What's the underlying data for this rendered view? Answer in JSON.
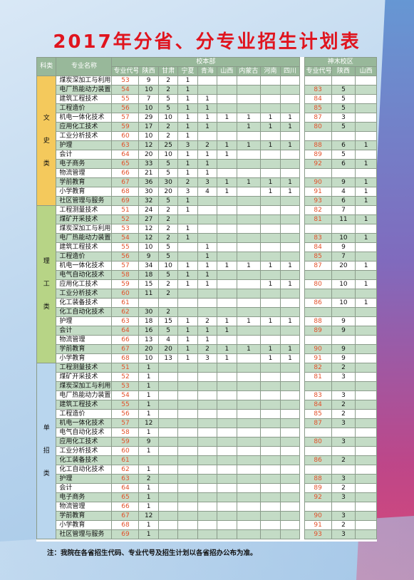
{
  "title": "2017年分省、分专业招生计划表",
  "colors": {
    "title": "#e0141e",
    "header": "#98b89a",
    "row_alt": "#c4dcc6",
    "code": "#e2502a",
    "cat_wen": "#f4c95c",
    "cat_li": "#b7d486",
    "cat_dan": "#b9d6ee"
  },
  "header": {
    "category": "科类",
    "major_name": "专业名称",
    "campus_main": "校本部",
    "campus_shenmu": "神木校区",
    "main_cols": [
      "专业代号",
      "陕西",
      "甘肃",
      "宁夏",
      "青海",
      "山西",
      "内蒙古",
      "河南",
      "四川"
    ],
    "shenmu_cols": [
      "专业代号",
      "陕西",
      "山西"
    ]
  },
  "groups": [
    {
      "category": "文\n\n史\n\n类",
      "cls": "cat-wen",
      "rows": [
        {
          "name": "煤炭深加工与利用",
          "code": "53",
          "m": [
            "9",
            "2",
            "1",
            "",
            "",
            "",
            "",
            ""
          ],
          "sc": "",
          "s": [
            "",
            ""
          ]
        },
        {
          "name": "电厂热能动力装置",
          "code": "54",
          "m": [
            "10",
            "2",
            "1",
            "",
            "",
            "",
            "",
            ""
          ],
          "sc": "83",
          "s": [
            "5",
            ""
          ]
        },
        {
          "name": "建筑工程技术",
          "code": "55",
          "m": [
            "7",
            "5",
            "1",
            "1",
            "",
            "",
            "",
            ""
          ],
          "sc": "84",
          "s": [
            "5",
            ""
          ]
        },
        {
          "name": "工程造价",
          "code": "56",
          "m": [
            "10",
            "5",
            "1",
            "1",
            "",
            "",
            "",
            ""
          ],
          "sc": "85",
          "s": [
            "5",
            ""
          ]
        },
        {
          "name": "机电一体化技术",
          "code": "57",
          "m": [
            "29",
            "10",
            "1",
            "1",
            "1",
            "1",
            "1",
            "1"
          ],
          "sc": "87",
          "s": [
            "3",
            ""
          ]
        },
        {
          "name": "应用化工技术",
          "code": "59",
          "m": [
            "17",
            "2",
            "1",
            "1",
            "",
            "1",
            "1",
            "1"
          ],
          "sc": "80",
          "s": [
            "5",
            ""
          ]
        },
        {
          "name": "工业分析技术",
          "code": "60",
          "m": [
            "10",
            "2",
            "1",
            "",
            "",
            "",
            "",
            ""
          ],
          "sc": "",
          "s": [
            "",
            ""
          ]
        },
        {
          "name": "护理",
          "code": "63",
          "m": [
            "12",
            "25",
            "3",
            "2",
            "1",
            "1",
            "1",
            "1"
          ],
          "sc": "88",
          "s": [
            "6",
            "1"
          ]
        },
        {
          "name": "会计",
          "code": "64",
          "m": [
            "20",
            "10",
            "1",
            "1",
            "1",
            "",
            "",
            ""
          ],
          "sc": "89",
          "s": [
            "5",
            ""
          ]
        },
        {
          "name": "电子商务",
          "code": "65",
          "m": [
            "33",
            "5",
            "1",
            "1",
            "",
            "",
            "",
            ""
          ],
          "sc": "92",
          "s": [
            "6",
            "1"
          ]
        },
        {
          "name": "物流管理",
          "code": "66",
          "m": [
            "21",
            "5",
            "1",
            "1",
            "",
            "",
            "",
            ""
          ],
          "sc": "",
          "s": [
            "",
            ""
          ]
        },
        {
          "name": "学前教育",
          "code": "67",
          "m": [
            "36",
            "30",
            "2",
            "3",
            "1",
            "1",
            "1",
            "1"
          ],
          "sc": "90",
          "s": [
            "9",
            "1"
          ]
        },
        {
          "name": "小学教育",
          "code": "68",
          "m": [
            "30",
            "20",
            "3",
            "4",
            "1",
            "",
            "1",
            "1"
          ],
          "sc": "91",
          "s": [
            "4",
            "1"
          ]
        },
        {
          "name": "社区管理与服务",
          "code": "69",
          "m": [
            "32",
            "5",
            "1",
            "",
            "",
            "",
            "",
            ""
          ],
          "sc": "93",
          "s": [
            "6",
            "1"
          ]
        }
      ]
    },
    {
      "category": "理\n\n工\n\n类",
      "cls": "cat-li",
      "rows": [
        {
          "name": "工程测量技术",
          "code": "51",
          "m": [
            "24",
            "2",
            "1",
            "",
            "",
            "",
            "",
            ""
          ],
          "sc": "82",
          "s": [
            "7",
            ""
          ]
        },
        {
          "name": "煤矿开采技术",
          "code": "52",
          "m": [
            "27",
            "2",
            "",
            "",
            "",
            "",
            "",
            ""
          ],
          "sc": "81",
          "s": [
            "11",
            "1"
          ]
        },
        {
          "name": "煤炭深加工与利用",
          "code": "53",
          "m": [
            "12",
            "2",
            "1",
            "",
            "",
            "",
            "",
            ""
          ],
          "sc": "",
          "s": [
            "",
            ""
          ]
        },
        {
          "name": "电厂热能动力装置",
          "code": "54",
          "m": [
            "12",
            "2",
            "1",
            "",
            "",
            "",
            "",
            ""
          ],
          "sc": "83",
          "s": [
            "10",
            "1"
          ]
        },
        {
          "name": "建筑工程技术",
          "code": "55",
          "m": [
            "10",
            "5",
            "",
            "1",
            "",
            "",
            "",
            ""
          ],
          "sc": "84",
          "s": [
            "9",
            ""
          ]
        },
        {
          "name": "工程造价",
          "code": "56",
          "m": [
            "9",
            "5",
            "",
            "1",
            "",
            "",
            "",
            ""
          ],
          "sc": "85",
          "s": [
            "7",
            ""
          ]
        },
        {
          "name": "机电一体化技术",
          "code": "57",
          "m": [
            "34",
            "10",
            "1",
            "1",
            "1",
            "1",
            "1",
            "1"
          ],
          "sc": "87",
          "s": [
            "20",
            "1"
          ]
        },
        {
          "name": "电气自动化技术",
          "code": "58",
          "m": [
            "18",
            "5",
            "1",
            "1",
            "",
            "",
            "",
            ""
          ],
          "sc": "",
          "s": [
            "",
            ""
          ]
        },
        {
          "name": "应用化工技术",
          "code": "59",
          "m": [
            "15",
            "2",
            "1",
            "1",
            "",
            "",
            "1",
            "1"
          ],
          "sc": "80",
          "s": [
            "10",
            "1"
          ]
        },
        {
          "name": "工业分析技术",
          "code": "60",
          "m": [
            "11",
            "2",
            "",
            "",
            "",
            "",
            "",
            ""
          ],
          "sc": "",
          "s": [
            "",
            ""
          ]
        },
        {
          "name": "化工装备技术",
          "code": "61",
          "m": [
            "",
            "",
            "",
            "",
            "",
            "",
            "",
            ""
          ],
          "sc": "86",
          "s": [
            "10",
            "1"
          ]
        },
        {
          "name": "化工自动化技术",
          "code": "62",
          "m": [
            "30",
            "2",
            "",
            "",
            "",
            "",
            "",
            ""
          ],
          "sc": "",
          "s": [
            "",
            ""
          ]
        },
        {
          "name": "护理",
          "code": "63",
          "m": [
            "18",
            "15",
            "1",
            "2",
            "1",
            "1",
            "1",
            "1"
          ],
          "sc": "88",
          "s": [
            "9",
            ""
          ]
        },
        {
          "name": "会计",
          "code": "64",
          "m": [
            "16",
            "5",
            "1",
            "1",
            "1",
            "",
            "",
            ""
          ],
          "sc": "89",
          "s": [
            "9",
            ""
          ]
        },
        {
          "name": "物流管理",
          "code": "66",
          "m": [
            "13",
            "4",
            "1",
            "1",
            "",
            "",
            "",
            ""
          ],
          "sc": "",
          "s": [
            "",
            ""
          ]
        },
        {
          "name": "学前教育",
          "code": "67",
          "m": [
            "20",
            "20",
            "1",
            "2",
            "1",
            "1",
            "1",
            "1"
          ],
          "sc": "90",
          "s": [
            "9",
            ""
          ]
        },
        {
          "name": "小学教育",
          "code": "68",
          "m": [
            "10",
            "13",
            "1",
            "3",
            "1",
            "",
            "1",
            "1"
          ],
          "sc": "91",
          "s": [
            "9",
            ""
          ]
        }
      ]
    },
    {
      "category": "单\n\n招\n\n类",
      "cls": "cat-dan",
      "rows": [
        {
          "name": "工程测量技术",
          "code": "51",
          "m": [
            "1",
            "",
            "",
            "",
            "",
            "",
            "",
            ""
          ],
          "sc": "82",
          "s": [
            "2",
            ""
          ]
        },
        {
          "name": "煤矿开采技术",
          "code": "52",
          "m": [
            "1",
            "",
            "",
            "",
            "",
            "",
            "",
            ""
          ],
          "sc": "81",
          "s": [
            "3",
            ""
          ]
        },
        {
          "name": "煤炭深加工与利用",
          "code": "53",
          "m": [
            "1",
            "",
            "",
            "",
            "",
            "",
            "",
            ""
          ],
          "sc": "",
          "s": [
            "",
            ""
          ]
        },
        {
          "name": "电厂热能动力装置",
          "code": "54",
          "m": [
            "1",
            "",
            "",
            "",
            "",
            "",
            "",
            ""
          ],
          "sc": "83",
          "s": [
            "3",
            ""
          ]
        },
        {
          "name": "建筑工程技术",
          "code": "55",
          "m": [
            "1",
            "",
            "",
            "",
            "",
            "",
            "",
            ""
          ],
          "sc": "84",
          "s": [
            "2",
            ""
          ]
        },
        {
          "name": "工程造价",
          "code": "56",
          "m": [
            "1",
            "",
            "",
            "",
            "",
            "",
            "",
            ""
          ],
          "sc": "85",
          "s": [
            "2",
            ""
          ]
        },
        {
          "name": "机电一体化技术",
          "code": "57",
          "m": [
            "12",
            "",
            "",
            "",
            "",
            "",
            "",
            ""
          ],
          "sc": "87",
          "s": [
            "3",
            ""
          ]
        },
        {
          "name": "电气自动化技术",
          "code": "58",
          "m": [
            "1",
            "",
            "",
            "",
            "",
            "",
            "",
            ""
          ],
          "sc": "",
          "s": [
            "",
            ""
          ]
        },
        {
          "name": "应用化工技术",
          "code": "59",
          "m": [
            "9",
            "",
            "",
            "",
            "",
            "",
            "",
            ""
          ],
          "sc": "80",
          "s": [
            "3",
            ""
          ]
        },
        {
          "name": "工业分析技术",
          "code": "60",
          "m": [
            "1",
            "",
            "",
            "",
            "",
            "",
            "",
            ""
          ],
          "sc": "",
          "s": [
            "",
            ""
          ]
        },
        {
          "name": "化工装备技术",
          "code": "61",
          "m": [
            "",
            "",
            "",
            "",
            "",
            "",
            "",
            ""
          ],
          "sc": "86",
          "s": [
            "2",
            ""
          ]
        },
        {
          "name": "化工自动化技术",
          "code": "62",
          "m": [
            "1",
            "",
            "",
            "",
            "",
            "",
            "",
            ""
          ],
          "sc": "",
          "s": [
            "",
            ""
          ]
        },
        {
          "name": "护理",
          "code": "63",
          "m": [
            "2",
            "",
            "",
            "",
            "",
            "",
            "",
            ""
          ],
          "sc": "88",
          "s": [
            "3",
            ""
          ]
        },
        {
          "name": "会计",
          "code": "64",
          "m": [
            "1",
            "",
            "",
            "",
            "",
            "",
            "",
            ""
          ],
          "sc": "89",
          "s": [
            "2",
            ""
          ]
        },
        {
          "name": "电子商务",
          "code": "65",
          "m": [
            "1",
            "",
            "",
            "",
            "",
            "",
            "",
            ""
          ],
          "sc": "92",
          "s": [
            "3",
            ""
          ]
        },
        {
          "name": "物流管理",
          "code": "66",
          "m": [
            "1",
            "",
            "",
            "",
            "",
            "",
            "",
            ""
          ],
          "sc": "",
          "s": [
            "",
            ""
          ]
        },
        {
          "name": "学前教育",
          "code": "67",
          "m": [
            "12",
            "",
            "",
            "",
            "",
            "",
            "",
            ""
          ],
          "sc": "90",
          "s": [
            "3",
            ""
          ]
        },
        {
          "name": "小学教育",
          "code": "68",
          "m": [
            "1",
            "",
            "",
            "",
            "",
            "",
            "",
            ""
          ],
          "sc": "91",
          "s": [
            "2",
            ""
          ]
        },
        {
          "name": "社区管理与服务",
          "code": "69",
          "m": [
            "1",
            "",
            "",
            "",
            "",
            "",
            "",
            ""
          ],
          "sc": "93",
          "s": [
            "3",
            ""
          ]
        }
      ]
    }
  ],
  "note": "注：我院在各省招生代码、专业代号及招生计划以各省招办公布为准。"
}
